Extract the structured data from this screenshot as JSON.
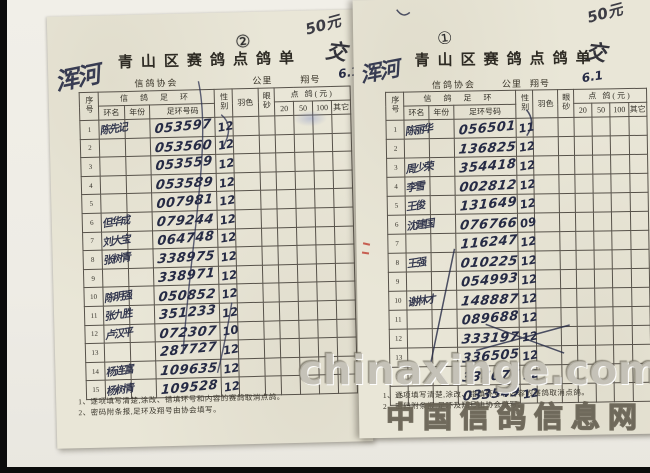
{
  "scan": {
    "watermark_main": "chinaxinge.com",
    "watermark_sub": "中国信鸽信息网"
  },
  "forms": [
    {
      "page_mark": "②",
      "fee_mark": "50元",
      "paid_mark": "交",
      "signature": "浑河",
      "title": "青山区赛鸽点鸽单",
      "association_label": "信鸽协会",
      "distance_label": "公里",
      "flight_label": "翔号",
      "flight_value": "6.1",
      "columns": {
        "seq": "序号",
        "ring_group": "信 鸽 足 环",
        "ring_name": "环名",
        "year": "年份",
        "ring_no": "足环号码",
        "sex": "性别",
        "feather": "羽色",
        "eye": "眼砂",
        "fee_group": "点 鸽(元)",
        "fee_20": "20",
        "fee_50": "50",
        "fee_100": "100",
        "fee_other": "其它"
      },
      "rows": [
        {
          "no": "1",
          "name": "陈先记",
          "ring": "053597",
          "code": "12"
        },
        {
          "no": "2",
          "name": "",
          "ring": "053560",
          "code": "12"
        },
        {
          "no": "3",
          "name": "",
          "ring": "053559",
          "code": "12"
        },
        {
          "no": "4",
          "name": "",
          "ring": "053589",
          "code": "12"
        },
        {
          "no": "5",
          "name": "",
          "ring": "007981",
          "code": "12"
        },
        {
          "no": "6",
          "name": "但华成",
          "ring": "079244",
          "code": "12"
        },
        {
          "no": "7",
          "name": "刘大宝",
          "ring": "064748",
          "code": "12"
        },
        {
          "no": "8",
          "name": "张树青",
          "ring": "338975",
          "code": "12"
        },
        {
          "no": "9",
          "name": "",
          "ring": "338971",
          "code": "12"
        },
        {
          "no": "10",
          "name": "陈明强",
          "ring": "050852",
          "code": "12"
        },
        {
          "no": "11",
          "name": "张九胜",
          "ring": "351233",
          "code": "12"
        },
        {
          "no": "12",
          "name": "卢汉平",
          "ring": "072307",
          "code": "10"
        },
        {
          "no": "13",
          "name": "",
          "ring": "287727",
          "code": "12"
        },
        {
          "no": "14",
          "name": "杨连富",
          "ring": "109635",
          "code": "12"
        },
        {
          "no": "15",
          "name": "杨树青",
          "ring": "109528",
          "code": "12"
        }
      ],
      "notes": [
        "1、逐项填写清楚,涂改、错填环号和内容的赛鸽取消点鸽。",
        "2、密码附条报,足环及翔号由协会填写。"
      ]
    },
    {
      "page_mark": "①",
      "fee_mark": "50元",
      "paid_mark": "交",
      "signature": "浑河",
      "title": "青山区赛鸽点鸽单",
      "association_label": "信鸽协会",
      "distance_label": "公里",
      "flight_label": "翔号",
      "flight_value": "6.1",
      "columns": {
        "seq": "序号",
        "ring_group": "信 鸽 足 环",
        "ring_name": "环名",
        "year": "年份",
        "ring_no": "足环号码",
        "sex": "性别",
        "feather": "羽色",
        "eye": "眼砂",
        "fee_group": "点 鸽(元)",
        "fee_20": "20",
        "fee_50": "50",
        "fee_100": "100",
        "fee_other": "其它"
      },
      "rows": [
        {
          "no": "1",
          "name": "陈丽华",
          "ring": "056501",
          "code": "11"
        },
        {
          "no": "2",
          "name": "",
          "ring": "136825",
          "code": "12"
        },
        {
          "no": "3",
          "name": "周少荣",
          "ring": "354418",
          "code": "12"
        },
        {
          "no": "4",
          "name": "李雪",
          "ring": "002812",
          "code": "12"
        },
        {
          "no": "5",
          "name": "王俊",
          "ring": "131649",
          "code": "12"
        },
        {
          "no": "6",
          "name": "沈建国",
          "ring": "076766",
          "code": "09"
        },
        {
          "no": "7",
          "name": "",
          "ring": "116247",
          "code": "12"
        },
        {
          "no": "8",
          "name": "王强",
          "ring": "010225",
          "code": "12"
        },
        {
          "no": "9",
          "name": "",
          "ring": "054993",
          "code": "12"
        },
        {
          "no": "10",
          "name": "谢林才",
          "ring": "148887",
          "code": "12"
        },
        {
          "no": "11",
          "name": "",
          "ring": "089688",
          "code": "12"
        },
        {
          "no": "12",
          "name": "",
          "ring": "333197",
          "code": "12"
        },
        {
          "no": "13",
          "name": "",
          "ring": "336505",
          "code": "12"
        },
        {
          "no": "14",
          "name": "",
          "ring": "334076",
          "code": "12"
        },
        {
          "no": "15",
          "name": "",
          "ring": "033549",
          "code": "12"
        }
      ],
      "notes": [
        "1、逐项填写清楚,涂改、错填环号和内容的赛鸽取消点鸽。",
        "2、密码附条报,足环及翔号由协会填写。"
      ]
    }
  ]
}
